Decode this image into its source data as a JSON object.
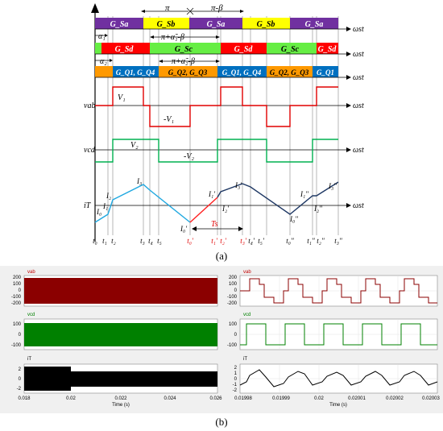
{
  "timing": {
    "gates": {
      "row1": [
        "G_Sa",
        "G_Sb",
        "G_Sa",
        "G_Sb",
        "G_Sa"
      ],
      "row2": [
        "G_Sd",
        "G_Sc",
        "G_Sd",
        "G_Sc",
        "G_Sd"
      ],
      "row3": [
        "G_Q1, G_Q4",
        "G_Q2, G_Q3",
        "G_Q1, G_Q4",
        "G_Q2, G_Q3",
        "G_Q1"
      ]
    },
    "annotations": {
      "pi": "π",
      "pi_minus_beta": "π-β",
      "alpha1": "α₁",
      "alpha2": "α₂",
      "phase1": "π+α̃₁-β",
      "phase2": "π+α̃₂-β"
    },
    "omega_t": "ωst",
    "waves": {
      "vab": "vab",
      "V1": "V₁",
      "minusV1": "-V₁",
      "vcd": "vcd",
      "V2": "V₂",
      "minusV2": "-V₂",
      "iT": "iT"
    },
    "current_points": [
      "I₀",
      "I₁",
      "I₂",
      "I₃",
      "I₀'",
      "I₁'",
      "I₂'",
      "I₃'",
      "I₀''",
      "I₁''",
      "I₂''",
      "I₃''"
    ],
    "bottom_ticks": [
      "t₀",
      "t₁",
      "t₂",
      "t₃",
      "t₄",
      "t₅",
      "t₀'",
      "t₁'",
      "t₂'",
      "t₃'",
      "t₄'",
      "t₅'",
      "t₀''",
      "t₁''",
      "t₂''",
      "t₃''"
    ],
    "Ts": "Ts",
    "label": "(a)"
  },
  "scopes": {
    "left": {
      "vab_label": "vab",
      "vcd_label": "vcd",
      "iT_label": "iT",
      "vab_ticks": [
        "200",
        "100",
        "0",
        "-100",
        "-200"
      ],
      "vcd_ticks": [
        "100",
        "0",
        "-100"
      ],
      "iT_ticks": [
        "2",
        "0",
        "-2"
      ],
      "x_ticks": [
        "0.018",
        "0.02",
        "0.022",
        "0.024",
        "0.026"
      ],
      "xlabel": "Time (s)"
    },
    "right": {
      "vab_label": "vab",
      "vcd_label": "vcd",
      "iT_label": "iT",
      "vab_ticks": [
        "200",
        "100",
        "0",
        "-100",
        "-200"
      ],
      "vcd_ticks": [
        "100",
        "0",
        "-100"
      ],
      "iT_ticks": [
        "2",
        "1",
        "0",
        "-1",
        "-2"
      ],
      "x_ticks": [
        "0.01998",
        "0.01999",
        "0.02",
        "0.02001",
        "0.02002",
        "0.02003"
      ],
      "xlabel": "Time (s)"
    },
    "label": "(b)"
  },
  "colors": {
    "purple": "#7030a0",
    "yellow": "#ffff00",
    "red": "#ff0000",
    "green": "#66ee44",
    "orange": "#ff9900",
    "blue": "#0070c0",
    "wave_red": "#e00000",
    "wave_green": "#00b050",
    "current_light_blue": "#20a8e0",
    "current_dark_blue": "#1f3864",
    "scope_vab": "#8b0000",
    "scope_vcd": "#008000"
  }
}
